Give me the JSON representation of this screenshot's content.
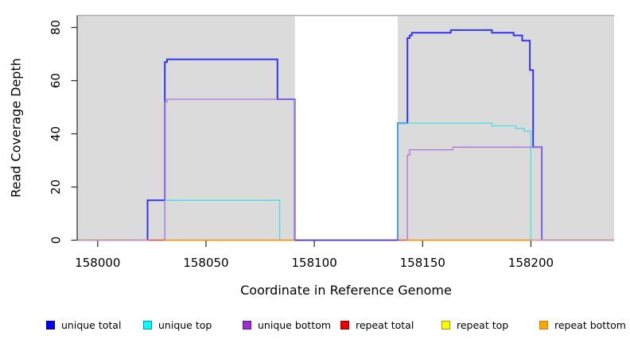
{
  "figure": {
    "background": "#ffffff",
    "panel_background": "#dbdbdb",
    "panel_top_border": "#ababab",
    "gap_background": "#ffffff",
    "axis_color": "#2b2b2b",
    "tick_label_color": "#000000"
  },
  "chart_data": {
    "type": "line",
    "subtype": "step-coverage",
    "title": "",
    "xlabel": "Coordinate in Reference Genome",
    "ylabel": "Read Coverage Depth",
    "x_domain": [
      157990.7,
      158238.4
    ],
    "y_domain": [
      0,
      84.5
    ],
    "x_ticks": [
      158000,
      158050,
      158100,
      158150,
      158200
    ],
    "y_ticks": [
      0,
      20,
      40,
      60,
      80
    ],
    "grid": false,
    "legend_position": "bottom",
    "uncovered_gap_x": [
      158091,
      158138.5
    ],
    "series": [
      {
        "name": "unique total",
        "color": "#3434f2",
        "width": 2,
        "points": [
          [
            157990.7,
            0
          ],
          [
            158023,
            15
          ],
          [
            158031,
            67
          ],
          [
            158032,
            68
          ],
          [
            158083,
            53
          ],
          [
            158091,
            0
          ],
          [
            158138.5,
            44
          ],
          [
            158143,
            76
          ],
          [
            158144,
            77
          ],
          [
            158145,
            78
          ],
          [
            158163,
            79
          ],
          [
            158182,
            78
          ],
          [
            158192,
            77
          ],
          [
            158196,
            75
          ],
          [
            158199.5,
            64
          ],
          [
            158201,
            35
          ],
          [
            158205,
            0
          ],
          [
            158238.4,
            0
          ]
        ]
      },
      {
        "name": "unique top",
        "color": "#45e0e6",
        "width": 1.3,
        "points": [
          [
            157990.7,
            0
          ],
          [
            158031,
            15
          ],
          [
            158084,
            0
          ],
          [
            158138.5,
            44
          ],
          [
            158182,
            43
          ],
          [
            158193,
            42
          ],
          [
            158197,
            41
          ],
          [
            158200,
            0
          ],
          [
            158238.4,
            0
          ]
        ]
      },
      {
        "name": "unique bottom",
        "color": "#ae74dc",
        "width": 1.3,
        "points": [
          [
            157990.7,
            0
          ],
          [
            158031,
            52
          ],
          [
            158032,
            53
          ],
          [
            158091,
            0
          ],
          [
            158143,
            32
          ],
          [
            158144,
            34
          ],
          [
            158164,
            35
          ],
          [
            158205,
            0
          ],
          [
            158238.4,
            0
          ]
        ]
      },
      {
        "name": "repeat total",
        "color": "#ee2c2c",
        "width": 1.2,
        "points": [
          [
            157990.7,
            0
          ],
          [
            158238.4,
            0
          ]
        ]
      },
      {
        "name": "repeat top",
        "color": "#ffff00",
        "width": 1.2,
        "points": [
          [
            157990.7,
            0
          ],
          [
            158238.4,
            0
          ]
        ]
      },
      {
        "name": "repeat bottom",
        "color": "#ff9019",
        "width": 1.5,
        "points": [
          [
            157990.7,
            0
          ],
          [
            158238.4,
            0
          ]
        ]
      }
    ],
    "zero_overlays": [
      {
        "color": "#b9a0e8",
        "width": 1.3,
        "from": 157990.7,
        "to": 158023
      },
      {
        "color": "#d6536f",
        "width": 1.3,
        "from": 158023,
        "to": 158031
      },
      {
        "color": "#3434f2",
        "width": 1.6,
        "from": 158091,
        "to": 158138.5
      },
      {
        "color": "#d6536f",
        "width": 1.3,
        "from": 158138.5,
        "to": 158142.5
      },
      {
        "color": "#b9a0e8",
        "width": 1.3,
        "from": 158200,
        "to": 158238.4
      }
    ]
  },
  "legend": {
    "items": [
      {
        "label": "unique total",
        "fill": "#0000ee",
        "border": "#000090"
      },
      {
        "label": "unique top",
        "fill": "#00ffff",
        "border": "#009a9a"
      },
      {
        "label": "unique bottom",
        "fill": "#9d2bd6",
        "border": "#5d1a8c"
      },
      {
        "label": "repeat total",
        "fill": "#ee0000",
        "border": "#8b0000"
      },
      {
        "label": "repeat top",
        "fill": "#ffff00",
        "border": "#9a9a00"
      },
      {
        "label": "repeat bottom",
        "fill": "#ffa500",
        "border": "#b8860b"
      }
    ]
  }
}
